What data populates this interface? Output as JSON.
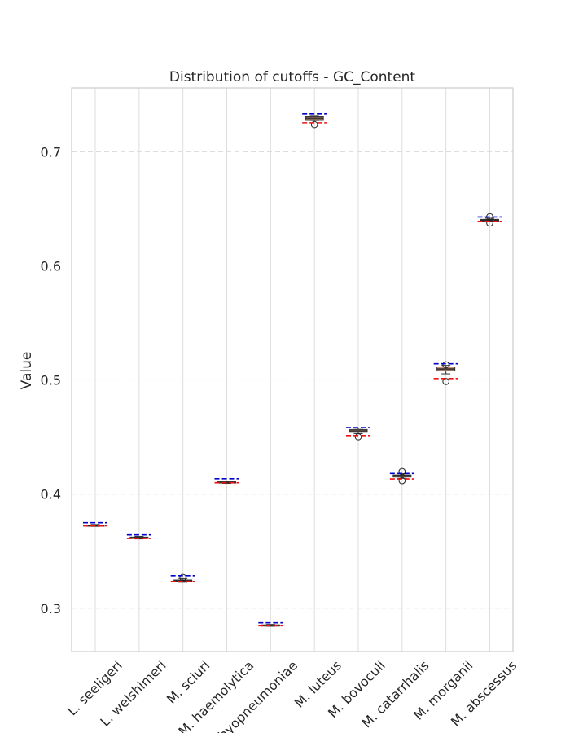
{
  "chart_data": {
    "type": "box",
    "title": "Distribution of cutoffs - GC_Content",
    "xlabel": "",
    "ylabel": "Value",
    "ylim": [
      0.262,
      0.756
    ],
    "yticks": [
      0.3,
      0.4,
      0.5,
      0.6,
      0.7
    ],
    "ytick_labels": [
      "0.3",
      "0.4",
      "0.5",
      "0.6",
      "0.7"
    ],
    "grid": true,
    "colors": {
      "upper_dashed": "#0000cc",
      "lower_dashed": "#ee1111",
      "median": "#2b2b2b",
      "box_fill": "#e8a380"
    },
    "categories": [
      "L. seeligeri",
      "L. welshimeri",
      "M. sciuri",
      "M. haemolytica",
      "M. hyopneumoniae",
      "M. luteus",
      "M. bovoculi",
      "M. catarrhalis",
      "M. morganii",
      "M. abscessus"
    ],
    "boxes": [
      {
        "whislo": 0.3718,
        "q1": 0.3722,
        "med": 0.3726,
        "q3": 0.373,
        "whishi": 0.3735,
        "fliers": [],
        "upper_line": 0.375,
        "lower_line": 0.3722
      },
      {
        "whislo": 0.3608,
        "q1": 0.3612,
        "med": 0.3618,
        "q3": 0.3624,
        "whishi": 0.363,
        "fliers": [],
        "upper_line": 0.3643,
        "lower_line": 0.3612
      },
      {
        "whislo": 0.3228,
        "q1": 0.3234,
        "med": 0.324,
        "q3": 0.3248,
        "whishi": 0.326,
        "fliers": [
          0.327
        ],
        "upper_line": 0.3285,
        "lower_line": 0.3235
      },
      {
        "whislo": 0.4094,
        "q1": 0.4099,
        "med": 0.4104,
        "q3": 0.4108,
        "whishi": 0.4114,
        "fliers": [],
        "upper_line": 0.4135,
        "lower_line": 0.41
      },
      {
        "whislo": 0.2842,
        "q1": 0.2846,
        "med": 0.285,
        "q3": 0.2854,
        "whishi": 0.2858,
        "fliers": [],
        "upper_line": 0.2872,
        "lower_line": 0.2846
      },
      {
        "whislo": 0.7272,
        "q1": 0.7282,
        "med": 0.7295,
        "q3": 0.7307,
        "whishi": 0.7318,
        "fliers": [
          0.7238
        ],
        "upper_line": 0.7333,
        "lower_line": 0.7254
      },
      {
        "whislo": 0.453,
        "q1": 0.4542,
        "med": 0.4554,
        "q3": 0.4566,
        "whishi": 0.4578,
        "fliers": [
          0.4502
        ],
        "upper_line": 0.4583,
        "lower_line": 0.4513
      },
      {
        "whislo": 0.4138,
        "q1": 0.415,
        "med": 0.416,
        "q3": 0.4168,
        "whishi": 0.418,
        "fliers": [
          0.4198,
          0.4118
        ],
        "upper_line": 0.4181,
        "lower_line": 0.4133
      },
      {
        "whislo": 0.5054,
        "q1": 0.5082,
        "med": 0.5097,
        "q3": 0.5114,
        "whishi": 0.5128,
        "fliers": [
          0.5133,
          0.4987
        ],
        "upper_line": 0.5142,
        "lower_line": 0.5013
      },
      {
        "whislo": 0.6386,
        "q1": 0.6393,
        "med": 0.6401,
        "q3": 0.6408,
        "whishi": 0.6418,
        "fliers": [
          0.6432,
          0.6376
        ],
        "upper_line": 0.6429,
        "lower_line": 0.6391
      }
    ]
  }
}
